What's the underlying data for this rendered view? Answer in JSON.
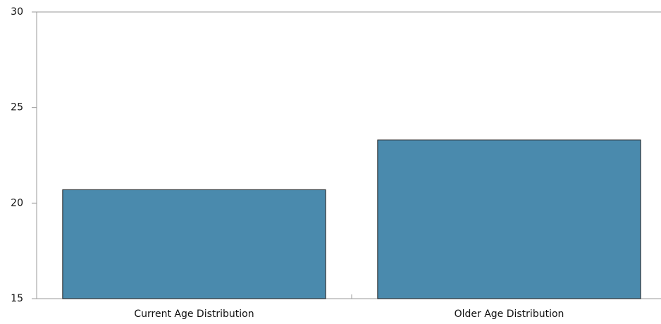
{
  "chart_data": {
    "type": "bar",
    "categories": [
      "Current Age Distribution",
      "Older Age Distribution"
    ],
    "values": [
      20.7,
      23.3
    ],
    "color": "#4a8aad",
    "ylim": [
      15,
      30
    ],
    "yticks": [
      15,
      20,
      25,
      30
    ]
  }
}
